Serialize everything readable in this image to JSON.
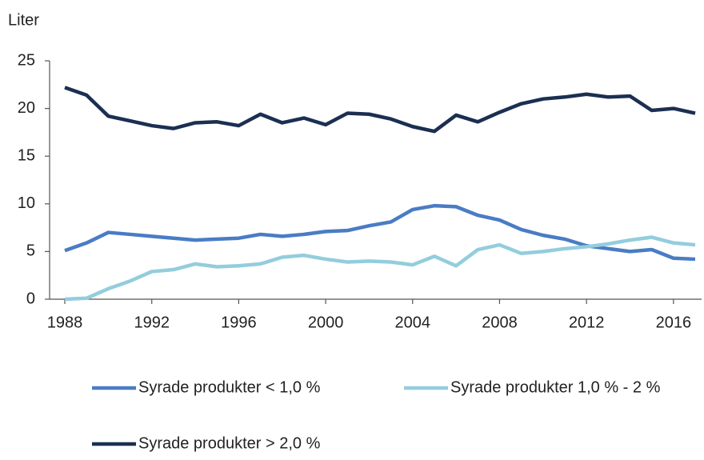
{
  "chart_data": {
    "type": "line",
    "y_label": "Liter",
    "x": [
      1988,
      1989,
      1990,
      1991,
      1992,
      1993,
      1994,
      1995,
      1996,
      1997,
      1998,
      1999,
      2000,
      2001,
      2002,
      2003,
      2004,
      2005,
      2006,
      2007,
      2008,
      2009,
      2010,
      2011,
      2012,
      2013,
      2014,
      2015,
      2016,
      2017
    ],
    "series": [
      {
        "name": "Syrade produkter < 1,0 %",
        "color": "#4a7cc4",
        "values": [
          5.1,
          5.9,
          7.0,
          6.8,
          6.6,
          6.4,
          6.2,
          6.3,
          6.4,
          6.8,
          6.6,
          6.8,
          7.1,
          7.2,
          7.7,
          8.1,
          9.4,
          9.8,
          9.7,
          8.8,
          8.3,
          7.3,
          6.7,
          6.3,
          5.6,
          5.3,
          5.0,
          5.2,
          4.3,
          4.2
        ]
      },
      {
        "name": "Syrade produkter 1,0 % - 2 %",
        "color": "#93cddd",
        "values": [
          0,
          0.1,
          1.1,
          1.9,
          2.9,
          3.1,
          3.7,
          3.4,
          3.5,
          3.7,
          4.4,
          4.6,
          4.2,
          3.9,
          4.0,
          3.9,
          3.6,
          4.5,
          3.5,
          5.2,
          5.7,
          4.8,
          5.0,
          5.3,
          5.5,
          5.8,
          6.2,
          6.5,
          5.9,
          5.7
        ]
      },
      {
        "name": "Syrade produkter > 2,0 %",
        "color": "#1b2f52",
        "values": [
          22.2,
          21.4,
          19.2,
          18.7,
          18.2,
          17.9,
          18.5,
          18.6,
          18.2,
          19.4,
          18.5,
          19.0,
          18.3,
          19.5,
          19.4,
          18.9,
          18.1,
          17.6,
          19.3,
          18.6,
          19.6,
          20.5,
          21.0,
          21.2,
          21.5,
          21.2,
          21.3,
          19.8,
          20.0,
          19.5
        ]
      }
    ],
    "xlim": [
      1987.3,
      2017
    ],
    "xticks": [
      1988,
      1992,
      1996,
      2000,
      2004,
      2008,
      2012,
      2016
    ],
    "ylim": [
      0,
      25
    ],
    "yticks": [
      0,
      5,
      10,
      15,
      20,
      25
    ],
    "grid": false
  }
}
